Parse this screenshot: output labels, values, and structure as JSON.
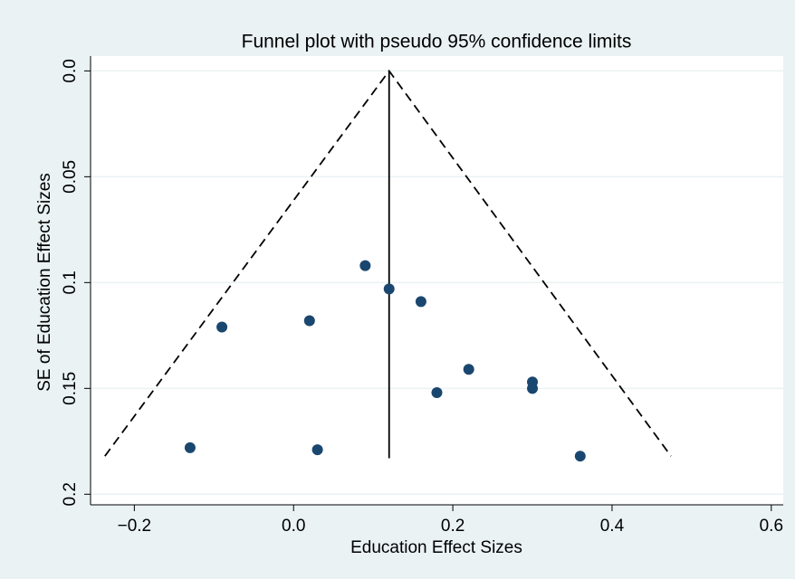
{
  "chart_data": {
    "type": "scatter",
    "title": "Funnel plot with pseudo 95% confidence limits",
    "xlabel": "Education Effect Sizes",
    "ylabel": "SE of Education Effect Sizes",
    "x": [
      -0.13,
      -0.09,
      0.02,
      0.03,
      0.09,
      0.12,
      0.16,
      0.22,
      0.18,
      0.3,
      0.3,
      0.36
    ],
    "values": [
      0.178,
      0.121,
      0.118,
      0.179,
      0.092,
      0.103,
      0.109,
      0.141,
      0.152,
      0.147,
      0.15,
      0.182
    ],
    "color": "#1a476f",
    "lines": [
      {
        "x": [
          0.12,
          0.12
        ],
        "y": [
          0,
          0.183
        ],
        "style": "solid"
      },
      {
        "x": [
          -0.237,
          0.12,
          0.474
        ],
        "y": [
          0.182,
          0,
          0.182
        ],
        "style": "dashed"
      }
    ],
    "xlim": [
      -0.255,
      0.615
    ],
    "ylim": [
      0.205,
      -0.007
    ],
    "xticks": [
      {
        "value": -0.2,
        "label": "−0.2"
      },
      {
        "value": 0,
        "label": "0.0"
      },
      0.2,
      0.4,
      0.6
    ],
    "yticks": [
      {
        "value": 0,
        "label": "0.0"
      },
      0.05,
      0.1,
      0.15,
      0.2
    ],
    "grid": true
  }
}
